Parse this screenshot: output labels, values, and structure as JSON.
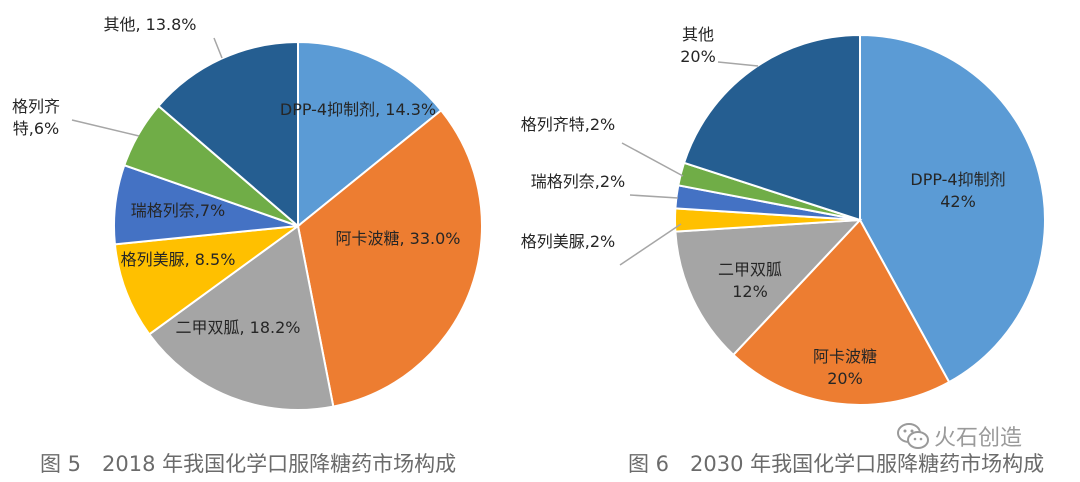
{
  "chart_data": [
    {
      "type": "pie",
      "caption": "图 5　2018 年我国化学口服降糖药市场构成",
      "slices": [
        {
          "label": "DPP-4抑制剂, 14.3%",
          "value": 14.3,
          "color": "#5b9bd5"
        },
        {
          "label": "阿卡波糖, 33.0%",
          "value": 33.0,
          "color": "#ed7d31"
        },
        {
          "label": "二甲双胍, 18.2%",
          "value": 18.2,
          "color": "#a5a5a5"
        },
        {
          "label": "格列美脲, 8.5%",
          "value": 8.5,
          "color": "#ffc000"
        },
        {
          "label": "瑞格列奈,7%",
          "value": 7,
          "color": "#4472c4"
        },
        {
          "label": "格列齐\n特,6%",
          "value": 6,
          "color": "#70ad47"
        },
        {
          "label": "其他, 13.8%",
          "value": 13.8,
          "color": "#255e91"
        }
      ]
    },
    {
      "type": "pie",
      "caption": "图 6　2030 年我国化学口服降糖药市场构成",
      "slices": [
        {
          "label": "DPP-4抑制剂\n42%",
          "value": 42,
          "color": "#5b9bd5"
        },
        {
          "label": "阿卡波糖\n20%",
          "value": 20,
          "color": "#ed7d31"
        },
        {
          "label": "二甲双胍\n12%",
          "value": 12,
          "color": "#a5a5a5"
        },
        {
          "label": "格列美脲,2%",
          "value": 2,
          "color": "#ffc000"
        },
        {
          "label": "瑞格列奈,2%",
          "value": 2,
          "color": "#4472c4"
        },
        {
          "label": "格列齐特,2%",
          "value": 2,
          "color": "#70ad47"
        },
        {
          "label": "其他\n20%",
          "value": 20,
          "color": "#255e91"
        }
      ]
    }
  ],
  "watermark": {
    "text": "火石创造",
    "icon": "wechat-icon"
  }
}
